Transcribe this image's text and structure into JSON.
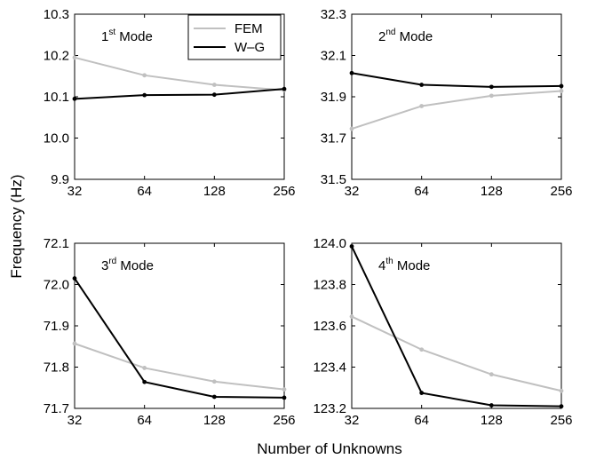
{
  "figure": {
    "ylabel": "Frequency (Hz)",
    "xlabel": "Number of Unknowns",
    "legend_position": "top-left panel, top-right corner",
    "colors": {
      "FEM": "#c0c0c0",
      "W-G": "#000000"
    }
  },
  "chart_data": [
    {
      "type": "line",
      "mode_number": "1",
      "mode_suffix": "st",
      "mode_word": "Mode",
      "categories": [
        "32",
        "64",
        "128",
        "256"
      ],
      "ylim": [
        9.9,
        10.3
      ],
      "yticks": [
        "9.9",
        "10.0",
        "10.1",
        "10.2",
        "10.3"
      ],
      "grid": false,
      "legend": [
        "FEM",
        "W–G"
      ],
      "series": [
        {
          "name": "FEM",
          "values": [
            10.195,
            10.152,
            10.129,
            10.116
          ]
        },
        {
          "name": "W–G",
          "values": [
            10.095,
            10.104,
            10.105,
            10.119
          ]
        }
      ]
    },
    {
      "type": "line",
      "mode_number": "2",
      "mode_suffix": "nd",
      "mode_word": "Mode",
      "categories": [
        "32",
        "64",
        "128",
        "256"
      ],
      "ylim": [
        31.5,
        32.3
      ],
      "yticks": [
        "31.5",
        "31.7",
        "31.9",
        "32.1",
        "32.3"
      ],
      "grid": false,
      "series": [
        {
          "name": "FEM",
          "values": [
            31.745,
            31.855,
            31.905,
            31.928
          ]
        },
        {
          "name": "W–G",
          "values": [
            32.015,
            31.958,
            31.948,
            31.952
          ]
        }
      ]
    },
    {
      "type": "line",
      "mode_number": "3",
      "mode_suffix": "rd",
      "mode_word": "Mode",
      "categories": [
        "32",
        "64",
        "128",
        "256"
      ],
      "ylim": [
        71.7,
        72.1
      ],
      "yticks": [
        "71.7",
        "71.8",
        "71.9",
        "72.0",
        "72.1"
      ],
      "grid": false,
      "series": [
        {
          "name": "FEM",
          "values": [
            71.857,
            71.798,
            71.765,
            71.746
          ]
        },
        {
          "name": "W–G",
          "values": [
            72.015,
            71.764,
            71.728,
            71.726
          ]
        }
      ]
    },
    {
      "type": "line",
      "mode_number": "4",
      "mode_suffix": "th",
      "mode_word": "Mode",
      "categories": [
        "32",
        "64",
        "128",
        "256"
      ],
      "ylim": [
        123.2,
        124.0
      ],
      "yticks": [
        "123.2",
        "123.4",
        "123.6",
        "123.8",
        "124.0"
      ],
      "grid": false,
      "series": [
        {
          "name": "FEM",
          "values": [
            123.645,
            123.485,
            123.365,
            123.285
          ]
        },
        {
          "name": "W–G",
          "values": [
            123.985,
            123.275,
            123.215,
            123.21
          ]
        }
      ]
    }
  ]
}
